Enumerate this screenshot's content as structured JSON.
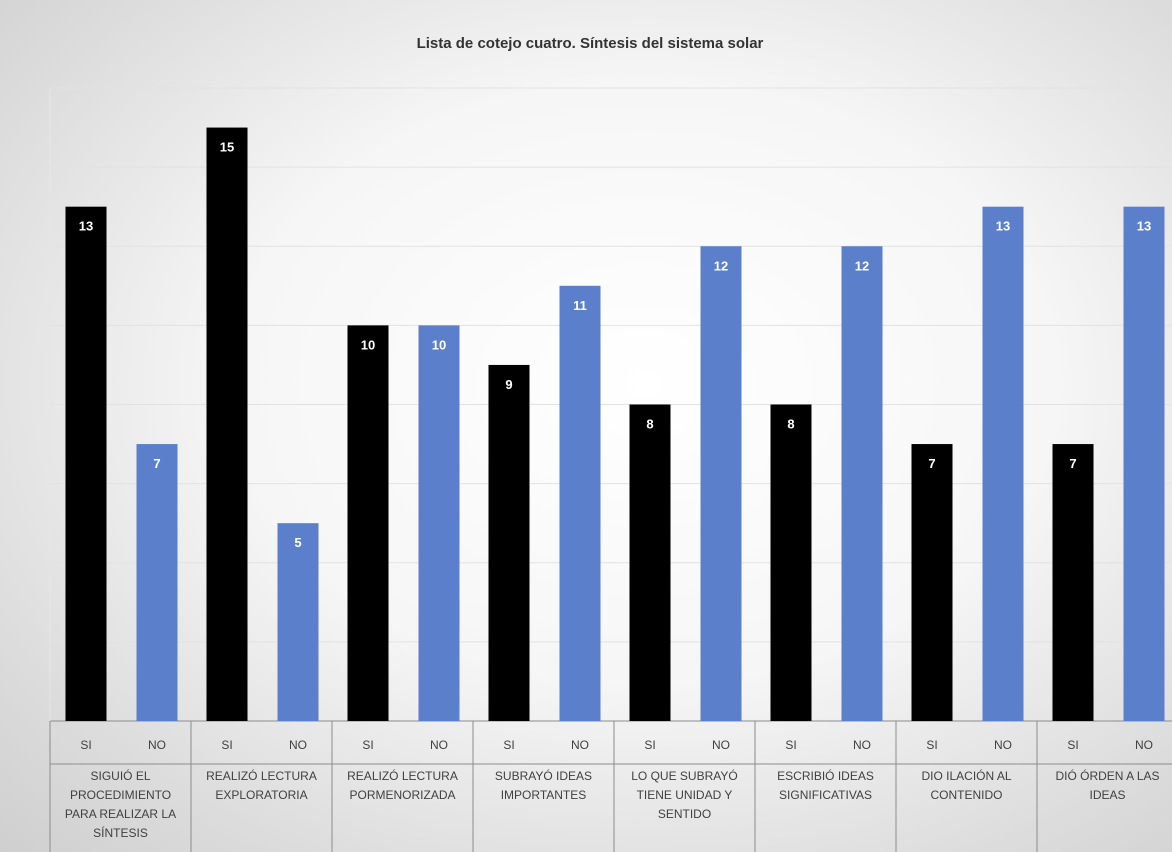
{
  "chart_data": {
    "type": "bar",
    "title": "Lista de cotejo cuatro. Síntesis del sistema solar",
    "categories": [
      [
        "SIGUIÓ EL",
        "PROCEDIMIENTO",
        "PARA REALIZAR LA",
        "SÍNTESIS"
      ],
      [
        "REALIZÓ LECTURA",
        "EXPLORATORIA"
      ],
      [
        "REALIZÓ LECTURA",
        "PORMENORIZADA"
      ],
      [
        "SUBRAYÓ IDEAS",
        "IMPORTANTES"
      ],
      [
        "LO QUE SUBRAYÓ",
        "TIENE UNIDAD Y",
        "SENTIDO"
      ],
      [
        "ESCRIBIÓ IDEAS",
        "SIGNIFICATIVAS"
      ],
      [
        "DIO ILACIÓN AL",
        "CONTENIDO"
      ],
      [
        "DIÓ ÓRDEN A LAS",
        "IDEAS"
      ]
    ],
    "series": [
      {
        "name": "SI",
        "color": "#000000",
        "values": [
          13,
          15,
          10,
          9,
          8,
          8,
          7,
          7
        ]
      },
      {
        "name": "NO",
        "color": "#5b7fca",
        "values": [
          7,
          5,
          10,
          11,
          12,
          12,
          13,
          13
        ]
      }
    ],
    "ylim": [
      0,
      16
    ],
    "gridlines": true,
    "data_labels": true,
    "legend": "none"
  }
}
